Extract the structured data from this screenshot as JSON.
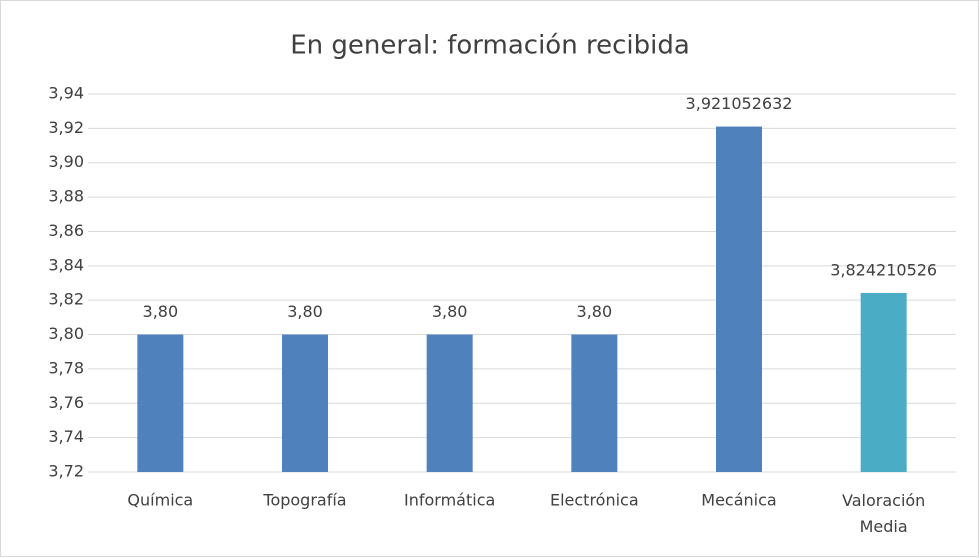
{
  "chart_data": {
    "type": "bar",
    "title": "En general: formación recibida",
    "categories": [
      "Química",
      "Topografía",
      "Informática",
      "Electrónica",
      "Mecánica",
      "Valoración Media"
    ],
    "values": [
      3.8,
      3.8,
      3.8,
      3.8,
      3.921052632,
      3.824210526
    ],
    "value_labels": [
      "3,80",
      "3,80",
      "3,80",
      "3,80",
      "3,921052632",
      "3,824210526"
    ],
    "colors": [
      "#4f81bd",
      "#4f81bd",
      "#4f81bd",
      "#4f81bd",
      "#4f81bd",
      "#4bacc6"
    ],
    "ylim": [
      3.72,
      3.94
    ],
    "yticks": [
      {
        "value": 3.72,
        "label": "3,72"
      },
      {
        "value": 3.74,
        "label": "3,74"
      },
      {
        "value": 3.76,
        "label": "3,76"
      },
      {
        "value": 3.78,
        "label": "3,78"
      },
      {
        "value": 3.8,
        "label": "3,80"
      },
      {
        "value": 3.82,
        "label": "3,82"
      },
      {
        "value": 3.84,
        "label": "3,84"
      },
      {
        "value": 3.86,
        "label": "3,86"
      },
      {
        "value": 3.88,
        "label": "3,88"
      },
      {
        "value": 3.9,
        "label": "3,90"
      },
      {
        "value": 3.92,
        "label": "3,92"
      },
      {
        "value": 3.94,
        "label": "3,94"
      }
    ],
    "grid": true
  }
}
